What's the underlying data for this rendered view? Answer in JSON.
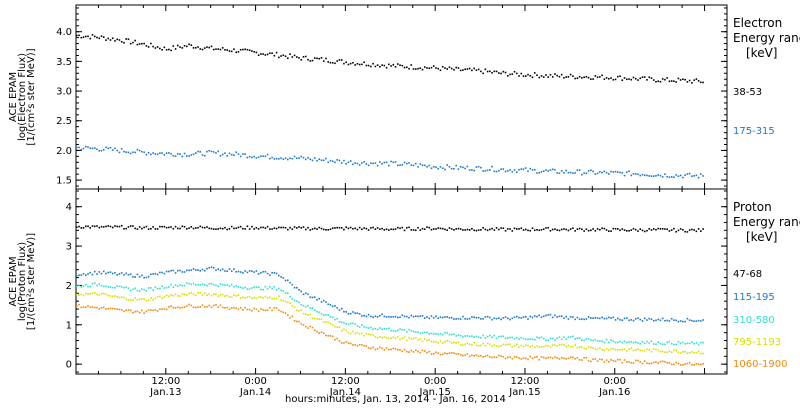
{
  "chart_data": [
    {
      "type": "scatter",
      "title": "",
      "ylabel_lines": [
        "ACE EPAM",
        "log(Electron Flux)",
        "[1/(cm²s ster MeV)]"
      ],
      "legend_title": [
        "Electron",
        "Energy ranges",
        "[keV]"
      ],
      "yticks": [
        "1.5",
        "2.0",
        "2.5",
        "3.0",
        "3.5",
        "4.0"
      ],
      "ylim": [
        1.35,
        4.45
      ],
      "xlim_hours": [
        0,
        87
      ],
      "series": [
        {
          "name": "38-53",
          "color": "#000000",
          "x": [
            0,
            3,
            6,
            9,
            12,
            15,
            18,
            21,
            24,
            27,
            30,
            33,
            36,
            39,
            42,
            45,
            48,
            51,
            54,
            57,
            60,
            63,
            66,
            69,
            72,
            75,
            78,
            81,
            84
          ],
          "y": [
            3.95,
            3.92,
            3.87,
            3.8,
            3.72,
            3.78,
            3.73,
            3.7,
            3.66,
            3.62,
            3.57,
            3.54,
            3.5,
            3.47,
            3.44,
            3.42,
            3.4,
            3.37,
            3.35,
            3.31,
            3.29,
            3.27,
            3.26,
            3.25,
            3.24,
            3.22,
            3.2,
            3.19,
            3.17
          ]
        },
        {
          "name": "175-315",
          "color": "#1f78c8",
          "x": [
            0,
            3,
            6,
            9,
            12,
            15,
            18,
            21,
            24,
            27,
            30,
            33,
            36,
            39,
            42,
            45,
            48,
            51,
            54,
            57,
            60,
            63,
            66,
            69,
            72,
            75,
            78,
            81,
            84
          ],
          "y": [
            2.06,
            2.04,
            2.01,
            1.98,
            1.96,
            1.95,
            1.97,
            1.95,
            1.92,
            1.9,
            1.88,
            1.85,
            1.82,
            1.8,
            1.79,
            1.77,
            1.74,
            1.72,
            1.71,
            1.69,
            1.68,
            1.66,
            1.65,
            1.64,
            1.63,
            1.62,
            1.6,
            1.59,
            1.58
          ]
        }
      ]
    },
    {
      "type": "scatter",
      "title": "",
      "ylabel_lines": [
        "ACE EPAM",
        "log(Proton Flux)",
        "[1/(cm²s ster MeV)]"
      ],
      "legend_title": [
        "Proton",
        "Energy ranges",
        "[keV]"
      ],
      "yticks": [
        "0",
        "1",
        "2",
        "3",
        "4"
      ],
      "ylim": [
        -0.25,
        4.45
      ],
      "xlim_hours": [
        0,
        87
      ],
      "series": [
        {
          "name": "47-68",
          "color": "#000000",
          "x": [
            0,
            3,
            6,
            9,
            12,
            15,
            18,
            21,
            24,
            27,
            30,
            33,
            36,
            39,
            42,
            45,
            48,
            51,
            54,
            57,
            60,
            63,
            66,
            69,
            72,
            75,
            78,
            81,
            84
          ],
          "y": [
            3.52,
            3.5,
            3.5,
            3.48,
            3.49,
            3.5,
            3.48,
            3.48,
            3.49,
            3.47,
            3.47,
            3.46,
            3.47,
            3.46,
            3.45,
            3.46,
            3.47,
            3.45,
            3.45,
            3.44,
            3.44,
            3.45,
            3.44,
            3.44,
            3.43,
            3.43,
            3.43,
            3.42,
            3.42
          ]
        },
        {
          "name": "115-195",
          "color": "#1f78c8",
          "x": [
            0,
            3,
            6,
            9,
            12,
            15,
            18,
            21,
            24,
            27,
            30,
            33,
            36,
            39,
            42,
            45,
            48,
            51,
            54,
            57,
            60,
            63,
            66,
            69,
            72,
            75,
            78,
            81,
            84
          ],
          "y": [
            2.3,
            2.35,
            2.3,
            2.25,
            2.35,
            2.4,
            2.45,
            2.4,
            2.35,
            2.3,
            1.85,
            1.6,
            1.35,
            1.25,
            1.25,
            1.22,
            1.2,
            1.2,
            1.2,
            1.18,
            1.2,
            1.25,
            1.2,
            1.18,
            1.17,
            1.16,
            1.15,
            1.14,
            1.13
          ]
        },
        {
          "name": "310-580",
          "color": "#30e0d0",
          "x": [
            0,
            3,
            6,
            9,
            12,
            15,
            18,
            21,
            24,
            27,
            30,
            33,
            36,
            39,
            42,
            45,
            48,
            51,
            54,
            57,
            60,
            63,
            66,
            69,
            72,
            75,
            78,
            81,
            84
          ],
          "y": [
            2.0,
            2.05,
            1.95,
            1.9,
            2.0,
            2.05,
            2.05,
            2.0,
            1.95,
            1.95,
            1.55,
            1.3,
            1.05,
            0.95,
            0.9,
            0.85,
            0.8,
            0.75,
            0.72,
            0.7,
            0.68,
            0.66,
            0.7,
            0.62,
            0.6,
            0.58,
            0.56,
            0.55,
            0.53
          ]
        },
        {
          "name": "795-1193",
          "color": "#d8e000",
          "x": [
            0,
            3,
            6,
            9,
            12,
            15,
            18,
            21,
            24,
            27,
            30,
            33,
            36,
            39,
            42,
            45,
            48,
            51,
            54,
            57,
            60,
            63,
            66,
            69,
            72,
            75,
            78,
            81,
            84
          ],
          "y": [
            1.8,
            1.8,
            1.7,
            1.65,
            1.75,
            1.8,
            1.8,
            1.75,
            1.7,
            1.72,
            1.35,
            1.1,
            0.85,
            0.75,
            0.7,
            0.65,
            0.6,
            0.55,
            0.52,
            0.5,
            0.48,
            0.46,
            0.5,
            0.42,
            0.4,
            0.38,
            0.36,
            0.34,
            0.32
          ]
        },
        {
          "name": "1060-1900",
          "color": "#f08a10",
          "x": [
            0,
            3,
            6,
            9,
            12,
            15,
            18,
            21,
            24,
            27,
            30,
            33,
            36,
            39,
            42,
            45,
            48,
            51,
            54,
            57,
            60,
            63,
            66,
            69,
            72,
            75,
            78,
            81,
            84
          ],
          "y": [
            1.5,
            1.45,
            1.38,
            1.35,
            1.45,
            1.5,
            1.5,
            1.45,
            1.4,
            1.42,
            1.05,
            0.8,
            0.55,
            0.45,
            0.4,
            0.35,
            0.3,
            0.26,
            0.22,
            0.2,
            0.18,
            0.16,
            0.2,
            0.12,
            0.1,
            0.08,
            0.06,
            0.03,
            0.0
          ]
        }
      ]
    }
  ],
  "xaxis": {
    "tick_labels": [
      {
        "hour": 12,
        "time": "12:00",
        "date": "Jan.13"
      },
      {
        "hour": 24,
        "time": "0:00",
        "date": "Jan.14"
      },
      {
        "hour": 36,
        "time": "12:00",
        "date": "Jan.14"
      },
      {
        "hour": 48,
        "time": "0:00",
        "date": "Jan.15"
      },
      {
        "hour": 60,
        "time": "12:00",
        "date": "Jan.15"
      },
      {
        "hour": 72,
        "time": "0:00",
        "date": "Jan.16"
      }
    ],
    "title": "hours:minutes, Jan. 13, 2014 - Jan. 16, 2014"
  }
}
